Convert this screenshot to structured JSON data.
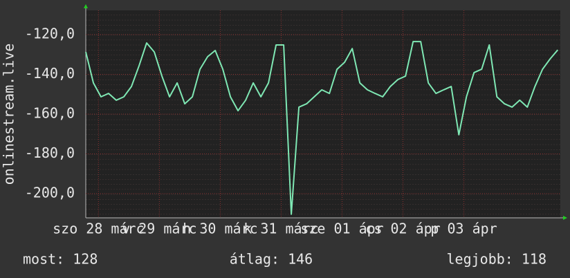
{
  "chart_data": {
    "type": "line",
    "y_label": "onlinestream.live",
    "x": [
      0,
      3,
      6,
      9,
      12,
      15,
      18,
      21,
      24,
      27,
      30,
      33,
      36,
      39,
      42,
      45,
      48,
      51,
      54,
      57,
      60,
      63,
      66,
      69,
      72,
      75,
      78,
      81,
      84,
      87,
      90,
      93,
      96,
      99,
      102,
      105,
      108,
      111,
      114,
      117,
      120,
      123,
      126,
      129,
      132,
      135,
      138,
      141,
      144,
      147,
      150,
      153,
      156,
      159,
      162,
      165,
      168,
      171,
      174,
      177,
      180,
      183,
      186
    ],
    "values": [
      -128.7,
      -144.3,
      -151.3,
      -149.6,
      -153.0,
      -151.3,
      -146.1,
      -135.7,
      -124.2,
      -128.7,
      -140.9,
      -151.3,
      -144.3,
      -154.8,
      -151.3,
      -137.4,
      -131.1,
      -128.0,
      -137.4,
      -151.3,
      -158.3,
      -153.0,
      -144.3,
      -151.3,
      -144.3,
      -125.2,
      -125.2,
      -210.4,
      -156.5,
      -154.8,
      -151.3,
      -147.8,
      -149.6,
      -137.4,
      -133.9,
      -127.0,
      -144.3,
      -147.8,
      -149.6,
      -151.3,
      -146.1,
      -142.6,
      -140.9,
      -123.5,
      -123.5,
      -144.3,
      -149.6,
      -147.8,
      -146.1,
      -170.4,
      -151.3,
      -139.1,
      -137.4,
      -125.2,
      -151.3,
      -154.8,
      -156.5,
      -153.0,
      -156.5,
      -146.1,
      -137.4,
      -132.2,
      -127.7
    ],
    "color": "#7fe8b4",
    "xlim": [
      0,
      187
    ],
    "xticks": [
      {
        "value": 5,
        "label": "szo 28 márc"
      },
      {
        "value": 29,
        "label": "v 29 márc"
      },
      {
        "value": 53,
        "label": "h 30 márc"
      },
      {
        "value": 77,
        "label": "k 31 márc"
      },
      {
        "value": 101,
        "label": "sze 01 ápr"
      },
      {
        "value": 125,
        "label": "cs 02 ápr"
      },
      {
        "value": 149,
        "label": "p 03 ápr"
      }
    ],
    "ylim": [
      -212.2,
      -107.8
    ],
    "yticks": [
      {
        "value": -120,
        "label": "-120,0"
      },
      {
        "value": -140,
        "label": "-140,0"
      },
      {
        "value": -160,
        "label": "-160,0"
      },
      {
        "value": -180,
        "label": "-180,0"
      },
      {
        "value": -200,
        "label": "-200,0"
      }
    ],
    "grid": true,
    "annotations": [
      "most: 128",
      "átlag: 146",
      "legjobb: 118"
    ]
  }
}
